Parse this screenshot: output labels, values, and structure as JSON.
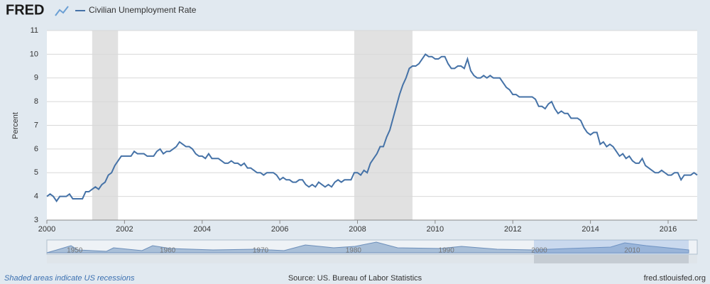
{
  "logo": "FRED",
  "chart_data": {
    "type": "line",
    "ylabel": "Percent",
    "x": [
      "2000-01",
      "2000-02",
      "2000-03",
      "2000-04",
      "2000-05",
      "2000-06",
      "2000-07",
      "2000-08",
      "2000-09",
      "2000-10",
      "2000-11",
      "2000-12",
      "2001-01",
      "2001-02",
      "2001-03",
      "2001-04",
      "2001-05",
      "2001-06",
      "2001-07",
      "2001-08",
      "2001-09",
      "2001-10",
      "2001-11",
      "2001-12",
      "2002-01",
      "2002-02",
      "2002-03",
      "2002-04",
      "2002-05",
      "2002-06",
      "2002-07",
      "2002-08",
      "2002-09",
      "2002-10",
      "2002-11",
      "2002-12",
      "2003-01",
      "2003-02",
      "2003-03",
      "2003-04",
      "2003-05",
      "2003-06",
      "2003-07",
      "2003-08",
      "2003-09",
      "2003-10",
      "2003-11",
      "2003-12",
      "2004-01",
      "2004-02",
      "2004-03",
      "2004-04",
      "2004-05",
      "2004-06",
      "2004-07",
      "2004-08",
      "2004-09",
      "2004-10",
      "2004-11",
      "2004-12",
      "2005-01",
      "2005-02",
      "2005-03",
      "2005-04",
      "2005-05",
      "2005-06",
      "2005-07",
      "2005-08",
      "2005-09",
      "2005-10",
      "2005-11",
      "2005-12",
      "2006-01",
      "2006-02",
      "2006-03",
      "2006-04",
      "2006-05",
      "2006-06",
      "2006-07",
      "2006-08",
      "2006-09",
      "2006-10",
      "2006-11",
      "2006-12",
      "2007-01",
      "2007-02",
      "2007-03",
      "2007-04",
      "2007-05",
      "2007-06",
      "2007-07",
      "2007-08",
      "2007-09",
      "2007-10",
      "2007-11",
      "2007-12",
      "2008-01",
      "2008-02",
      "2008-03",
      "2008-04",
      "2008-05",
      "2008-06",
      "2008-07",
      "2008-08",
      "2008-09",
      "2008-10",
      "2008-11",
      "2008-12",
      "2009-01",
      "2009-02",
      "2009-03",
      "2009-04",
      "2009-05",
      "2009-06",
      "2009-07",
      "2009-08",
      "2009-09",
      "2009-10",
      "2009-11",
      "2009-12",
      "2010-01",
      "2010-02",
      "2010-03",
      "2010-04",
      "2010-05",
      "2010-06",
      "2010-07",
      "2010-08",
      "2010-09",
      "2010-10",
      "2010-11",
      "2010-12",
      "2011-01",
      "2011-02",
      "2011-03",
      "2011-04",
      "2011-05",
      "2011-06",
      "2011-07",
      "2011-08",
      "2011-09",
      "2011-10",
      "2011-11",
      "2011-12",
      "2012-01",
      "2012-02",
      "2012-03",
      "2012-04",
      "2012-05",
      "2012-06",
      "2012-07",
      "2012-08",
      "2012-09",
      "2012-10",
      "2012-11",
      "2012-12",
      "2013-01",
      "2013-02",
      "2013-03",
      "2013-04",
      "2013-05",
      "2013-06",
      "2013-07",
      "2013-08",
      "2013-09",
      "2013-10",
      "2013-11",
      "2013-12",
      "2014-01",
      "2014-02",
      "2014-03",
      "2014-04",
      "2014-05",
      "2014-06",
      "2014-07",
      "2014-08",
      "2014-09",
      "2014-10",
      "2014-11",
      "2014-12",
      "2015-01",
      "2015-02",
      "2015-03",
      "2015-04",
      "2015-05",
      "2015-06",
      "2015-07",
      "2015-08",
      "2015-09",
      "2015-10",
      "2015-11",
      "2015-12",
      "2016-01",
      "2016-02",
      "2016-03",
      "2016-04",
      "2016-05",
      "2016-06",
      "2016-07",
      "2016-08",
      "2016-09",
      "2016-10"
    ],
    "series": [
      {
        "name": "Civilian Unemployment Rate",
        "color": "#4572a7",
        "values": [
          4.0,
          4.1,
          4.0,
          3.8,
          4.0,
          4.0,
          4.0,
          4.1,
          3.9,
          3.9,
          3.9,
          3.9,
          4.2,
          4.2,
          4.3,
          4.4,
          4.3,
          4.5,
          4.6,
          4.9,
          5.0,
          5.3,
          5.5,
          5.7,
          5.7,
          5.7,
          5.7,
          5.9,
          5.8,
          5.8,
          5.8,
          5.7,
          5.7,
          5.7,
          5.9,
          6.0,
          5.8,
          5.9,
          5.9,
          6.0,
          6.1,
          6.3,
          6.2,
          6.1,
          6.1,
          6.0,
          5.8,
          5.7,
          5.7,
          5.6,
          5.8,
          5.6,
          5.6,
          5.6,
          5.5,
          5.4,
          5.4,
          5.5,
          5.4,
          5.4,
          5.3,
          5.4,
          5.2,
          5.2,
          5.1,
          5.0,
          5.0,
          4.9,
          5.0,
          5.0,
          5.0,
          4.9,
          4.7,
          4.8,
          4.7,
          4.7,
          4.6,
          4.6,
          4.7,
          4.7,
          4.5,
          4.4,
          4.5,
          4.4,
          4.6,
          4.5,
          4.4,
          4.5,
          4.4,
          4.6,
          4.7,
          4.6,
          4.7,
          4.7,
          4.7,
          5.0,
          5.0,
          4.9,
          5.1,
          5.0,
          5.4,
          5.6,
          5.8,
          6.1,
          6.1,
          6.5,
          6.8,
          7.3,
          7.8,
          8.3,
          8.7,
          9.0,
          9.4,
          9.5,
          9.5,
          9.6,
          9.8,
          10.0,
          9.9,
          9.9,
          9.8,
          9.8,
          9.9,
          9.9,
          9.6,
          9.4,
          9.4,
          9.5,
          9.5,
          9.4,
          9.8,
          9.3,
          9.1,
          9.0,
          9.0,
          9.1,
          9.0,
          9.1,
          9.0,
          9.0,
          9.0,
          8.8,
          8.6,
          8.5,
          8.3,
          8.3,
          8.2,
          8.2,
          8.2,
          8.2,
          8.2,
          8.1,
          7.8,
          7.8,
          7.7,
          7.9,
          8.0,
          7.7,
          7.5,
          7.6,
          7.5,
          7.5,
          7.3,
          7.3,
          7.3,
          7.2,
          6.9,
          6.7,
          6.6,
          6.7,
          6.7,
          6.2,
          6.3,
          6.1,
          6.2,
          6.1,
          5.9,
          5.7,
          5.8,
          5.6,
          5.7,
          5.5,
          5.4,
          5.4,
          5.6,
          5.3,
          5.2,
          5.1,
          5.0,
          5.0,
          5.1,
          5.0,
          4.9,
          4.9,
          5.0,
          5.0,
          4.7,
          4.9,
          4.9,
          4.9,
          5.0,
          4.9
        ]
      }
    ],
    "recessions": [
      [
        "2001-03",
        "2001-11"
      ],
      [
        "2007-12",
        "2009-06"
      ]
    ],
    "recession_color": "#e1e1e1",
    "xlim": [
      "2000-01",
      "2016-10"
    ],
    "xticks": [
      2000,
      2002,
      2004,
      2006,
      2008,
      2010,
      2012,
      2014,
      2016
    ],
    "ylim": [
      3,
      11
    ],
    "yticks": [
      3,
      4,
      5,
      6,
      7,
      8,
      9,
      10,
      11
    ],
    "grid": true
  },
  "navigator": {
    "labels": [
      1950,
      1960,
      1970,
      1980,
      1990,
      2000,
      2010
    ]
  },
  "footer": {
    "note": "Shaded areas indicate US recessions",
    "source": "Source: US. Bureau of Labor Statistics",
    "site": "fred.stlouisfed.org"
  }
}
